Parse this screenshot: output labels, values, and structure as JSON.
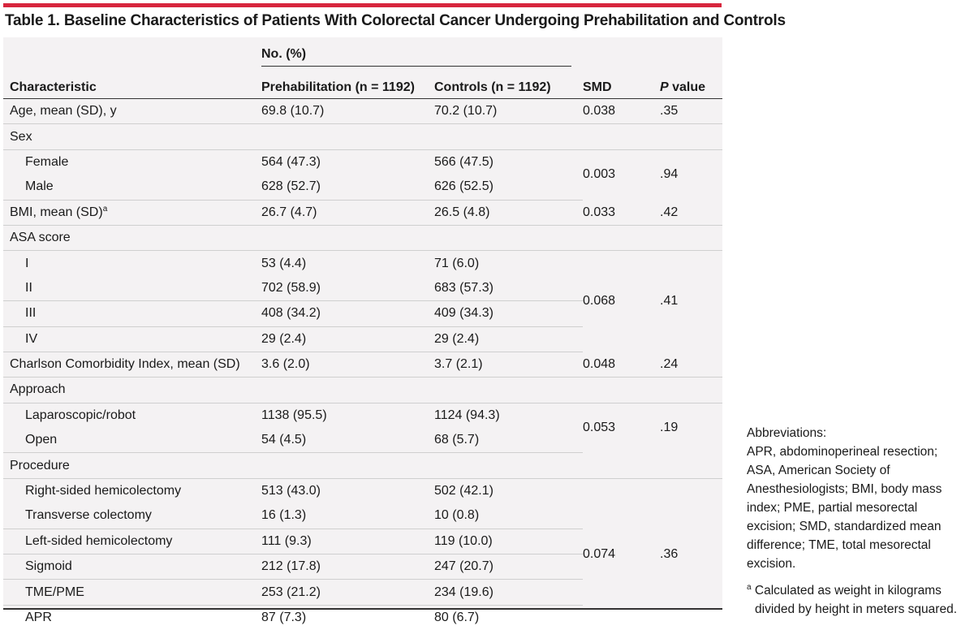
{
  "title": "Table 1. Baseline Characteristics of Patients With Colorectal Cancer Undergoing Prehabilitation and Controls",
  "header": {
    "group_label": "No. (%)",
    "characteristic": "Characteristic",
    "prehab": "Prehabilitation (n = 1192)",
    "controls": "Controls (n = 1192)",
    "smd": "SMD",
    "p_italic": "P",
    "p_rest": " value"
  },
  "rows": [
    {
      "label": "Age, mean (SD), y",
      "prehab": "69.8 (10.7)",
      "controls": "70.2 (10.7)",
      "smd": "0.038",
      "p": ".35"
    },
    {
      "label": "Sex"
    },
    {
      "label": "Female",
      "prehab": "564 (47.3)",
      "controls": "566 (47.5)"
    },
    {
      "label": "Male",
      "prehab": "628 (52.7)",
      "controls": "626 (52.5)"
    },
    {
      "label": "BMI, mean (SD)",
      "sup": "a",
      "prehab": "26.7 (4.7)",
      "controls": "26.5 (4.8)",
      "smd": "0.033",
      "p": ".42"
    },
    {
      "label": "ASA score"
    },
    {
      "label": "I",
      "prehab": "53 (4.4)",
      "controls": "71 (6.0)"
    },
    {
      "label": "II",
      "prehab": "702 (58.9)",
      "controls": "683 (57.3)"
    },
    {
      "label": "III",
      "prehab": "408 (34.2)",
      "controls": "409 (34.3)"
    },
    {
      "label": "IV",
      "prehab": "29 (2.4)",
      "controls": "29 (2.4)"
    },
    {
      "label": "Charlson Comorbidity Index, mean (SD)",
      "prehab": "3.6 (2.0)",
      "controls": "3.7 (2.1)",
      "smd": "0.048",
      "p": ".24"
    },
    {
      "label": "Approach"
    },
    {
      "label": "Laparoscopic/robot",
      "prehab": "1138 (95.5)",
      "controls": "1124 (94.3)"
    },
    {
      "label": "Open",
      "prehab": "54 (4.5)",
      "controls": "68 (5.7)"
    },
    {
      "label": "Procedure"
    },
    {
      "label": "Right-sided hemicolectomy",
      "prehab": "513 (43.0)",
      "controls": "502 (42.1)"
    },
    {
      "label": "Transverse colectomy",
      "prehab": "16 (1.3)",
      "controls": "10 (0.8)"
    },
    {
      "label": "Left-sided hemicolectomy",
      "prehab": "111 (9.3)",
      "controls": "119 (10.0)"
    },
    {
      "label": "Sigmoid",
      "prehab": "212 (17.8)",
      "controls": "247 (20.7)"
    },
    {
      "label": "TME/PME",
      "prehab": "253 (21.2)",
      "controls": "234 (19.6)"
    },
    {
      "label": "APR",
      "prehab": "87 (7.3)",
      "controls": "80 (6.7)"
    }
  ],
  "group_stats": {
    "sex": {
      "smd": "0.003",
      "p": ".94"
    },
    "asa": {
      "smd": "0.068",
      "p": ".41"
    },
    "approach": {
      "smd": "0.053",
      "p": ".19"
    },
    "procedure": {
      "smd": "0.074",
      "p": ".36"
    }
  },
  "notes": {
    "abbrev_lines": [
      "Abbreviations:",
      "APR, abdominoperineal resection;",
      "ASA, American Society of",
      "Anesthesiologists; BMI, body mass",
      "index; PME, partial mesorectal",
      "excision; SMD, standardized mean",
      "difference; TME, total mesorectal",
      "excision."
    ],
    "footnote_mark": "a",
    "footnote_lines": [
      "Calculated as weight in kilograms",
      "divided by height in meters squared."
    ]
  }
}
